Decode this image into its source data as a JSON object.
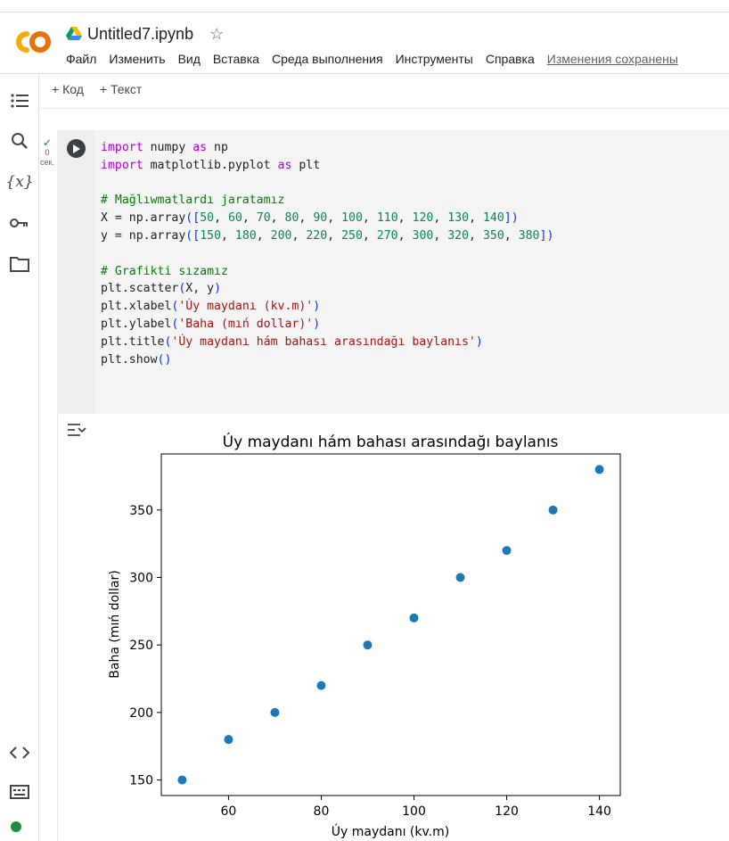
{
  "app": {
    "notebook_title": "Untitled7.ipynb",
    "menu": [
      "Файл",
      "Изменить",
      "Вид",
      "Вставка",
      "Среда выполнения",
      "Инструменты",
      "Справка"
    ],
    "saved_status": "Изменения сохранены",
    "toolbar": {
      "add_code": "+ Код",
      "add_text": "+ Текст"
    },
    "sidebar_icons": [
      "toc-icon",
      "search-icon",
      "variables-icon",
      "key-icon",
      "folder-icon",
      "code-snippets-icon",
      "terminal-icon"
    ]
  },
  "cell": {
    "exec_count": "0",
    "exec_unit": "сек.",
    "code_lines": [
      "import numpy as np",
      "import matplotlib.pyplot as plt",
      "",
      "# Mağlıwmatlardı jaratamız",
      "X = np.array([50, 60, 70, 80, 90, 100, 110, 120, 130, 140])",
      "y = np.array([150, 180, 200, 220, 250, 270, 300, 320, 350, 380])",
      "",
      "# Grafikti sızamız",
      "plt.scatter(X, y)",
      "plt.xlabel('Úy maydanı (kv.m)')",
      "plt.ylabel('Baha (mıń dollar)')",
      "plt.title('Úy maydanı hám bahası arasındağı baylanıs')",
      "plt.show()"
    ]
  },
  "chart_data": {
    "type": "scatter",
    "title": "Úy maydanı hám bahası arasındağı baylanıs",
    "xlabel": "Úy maydanı (kv.m)",
    "ylabel": "Baha (mıń dollar)",
    "x": [
      50,
      60,
      70,
      80,
      90,
      100,
      110,
      120,
      130,
      140
    ],
    "y": [
      150,
      180,
      200,
      220,
      250,
      270,
      300,
      320,
      350,
      380
    ],
    "xlim": [
      45.5,
      144.5
    ],
    "ylim": [
      138.5,
      391.5
    ],
    "xticks": [
      60,
      80,
      100,
      120,
      140
    ],
    "yticks": [
      150,
      200,
      250,
      300,
      350
    ],
    "marker_color": "#1f77b4",
    "grid": false
  }
}
